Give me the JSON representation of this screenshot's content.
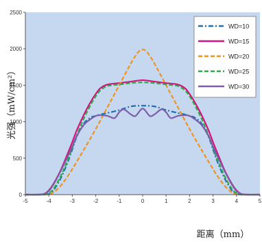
{
  "chart_data": {
    "type": "line",
    "xlabel": "距离（mm）",
    "ylabel": "光强（mW/cm²）",
    "xlim": [
      -5,
      5
    ],
    "ylim": [
      0,
      2500
    ],
    "x_ticks": [
      "-5",
      "-4",
      "-3",
      "-2",
      "-1",
      "0",
      "1",
      "2",
      "3",
      "4",
      "5"
    ],
    "y_ticks": [
      "0",
      "500",
      "1000",
      "1500",
      "2000",
      "2500"
    ],
    "grid": false,
    "legend_position": "top-right",
    "plot_background": "#c5d8f0",
    "series": [
      {
        "name": "WD=10",
        "color": "#1f6fb2",
        "dash": "dash-dot",
        "x": [
          -5,
          -4.5,
          -4.2,
          -4,
          -3.8,
          -3.5,
          -3.2,
          -3,
          -2.8,
          -2.5,
          -2.2,
          -2,
          -1.8,
          -1.5,
          -1,
          -0.5,
          0,
          0.5,
          1,
          1.5,
          1.8,
          2,
          2.2,
          2.5,
          2.8,
          3,
          3.2,
          3.5,
          3.8,
          4,
          4.2,
          4.5,
          5
        ],
        "y": [
          0,
          0,
          0,
          10,
          60,
          220,
          440,
          620,
          800,
          980,
          1060,
          1080,
          1100,
          1120,
          1160,
          1210,
          1220,
          1210,
          1160,
          1120,
          1100,
          1080,
          1060,
          980,
          800,
          620,
          440,
          220,
          60,
          10,
          0,
          0,
          0
        ]
      },
      {
        "name": "WD=15",
        "color": "#d4147a",
        "dash": "solid",
        "x": [
          -5,
          -4.5,
          -4.2,
          -4,
          -3.8,
          -3.5,
          -3.2,
          -3,
          -2.8,
          -2.5,
          -2.2,
          -2,
          -1.8,
          -1.5,
          -1,
          -0.5,
          0,
          0.5,
          1,
          1.5,
          1.8,
          2,
          2.2,
          2.5,
          2.8,
          3,
          3.2,
          3.5,
          3.8,
          4,
          4.2,
          4.5,
          5
        ],
        "y": [
          0,
          0,
          10,
          60,
          150,
          330,
          560,
          720,
          890,
          1100,
          1280,
          1380,
          1460,
          1510,
          1530,
          1550,
          1570,
          1550,
          1530,
          1510,
          1460,
          1380,
          1280,
          1100,
          890,
          720,
          560,
          330,
          150,
          60,
          10,
          0,
          0
        ]
      },
      {
        "name": "WD=20",
        "color": "#f0931e",
        "dash": "dashed",
        "x": [
          -5,
          -4.5,
          -4.2,
          -4,
          -3.8,
          -3.5,
          -3.2,
          -3,
          -2.5,
          -2,
          -1.5,
          -1,
          -0.5,
          -0.2,
          0,
          0.2,
          0.5,
          1,
          1.5,
          2,
          2.5,
          3,
          3.2,
          3.5,
          3.8,
          4,
          4.2,
          4.5,
          5
        ],
        "y": [
          0,
          0,
          0,
          5,
          30,
          120,
          250,
          350,
          620,
          900,
          1200,
          1500,
          1800,
          1950,
          1990,
          1950,
          1800,
          1500,
          1200,
          900,
          620,
          350,
          250,
          120,
          30,
          5,
          0,
          0,
          0
        ]
      },
      {
        "name": "WD=25",
        "color": "#2ea84a",
        "dash": "dashed",
        "x": [
          -5,
          -4.5,
          -4.2,
          -4,
          -3.8,
          -3.5,
          -3.2,
          -3,
          -2.8,
          -2.5,
          -2.2,
          -2,
          -1.8,
          -1.5,
          -1,
          -0.5,
          0,
          0.5,
          1,
          1.5,
          1.8,
          2,
          2.2,
          2.5,
          2.8,
          3,
          3.2,
          3.5,
          3.8,
          4,
          4.2,
          4.5,
          5
        ],
        "y": [
          0,
          0,
          0,
          20,
          80,
          250,
          470,
          640,
          820,
          1050,
          1240,
          1350,
          1430,
          1490,
          1510,
          1530,
          1540,
          1530,
          1510,
          1490,
          1430,
          1350,
          1240,
          1050,
          820,
          640,
          470,
          250,
          80,
          20,
          0,
          0,
          0
        ]
      },
      {
        "name": "WD=30",
        "color": "#7b5ea7",
        "dash": "solid",
        "x": [
          -5,
          -4.5,
          -4.2,
          -4,
          -3.8,
          -3.5,
          -3.2,
          -3,
          -2.8,
          -2.5,
          -2.2,
          -2,
          -1.8,
          -1.5,
          -1.2,
          -1,
          -0.8,
          -0.5,
          -0.3,
          0,
          0.3,
          0.5,
          0.8,
          1,
          1.2,
          1.5,
          1.8,
          2,
          2.2,
          2.5,
          2.8,
          3,
          3.2,
          3.5,
          3.8,
          4,
          4.2,
          4.5,
          5
        ],
        "y": [
          0,
          0,
          10,
          50,
          140,
          320,
          520,
          660,
          810,
          960,
          1040,
          1080,
          1090,
          1080,
          1050,
          1130,
          1170,
          1100,
          1080,
          1180,
          1080,
          1100,
          1170,
          1130,
          1050,
          1080,
          1090,
          1080,
          1040,
          960,
          810,
          660,
          520,
          320,
          140,
          50,
          10,
          0,
          0
        ]
      }
    ]
  }
}
